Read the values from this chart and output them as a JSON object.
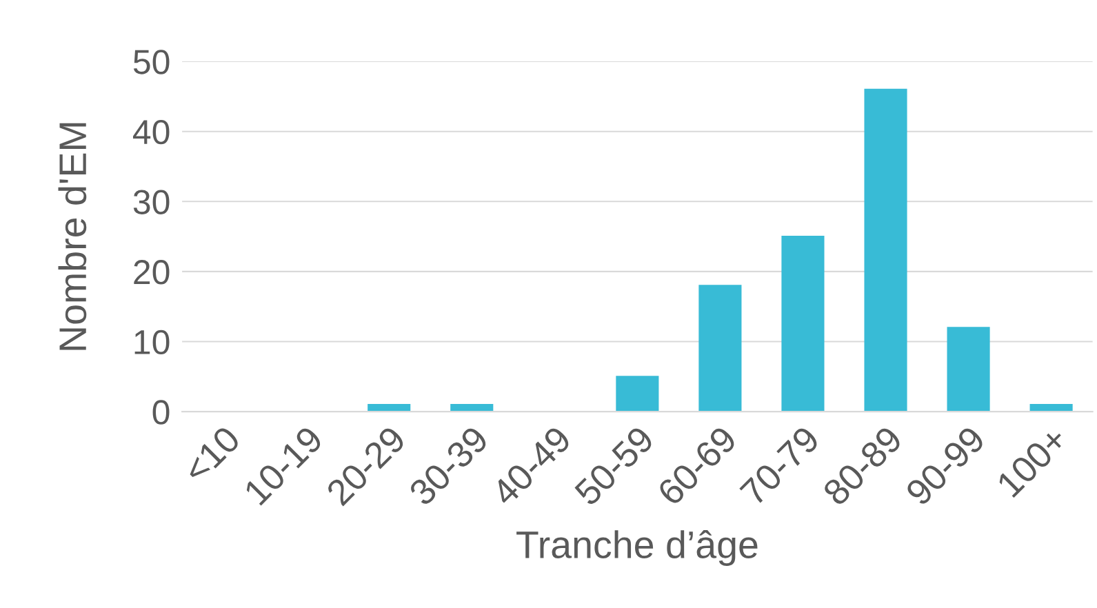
{
  "chart_data": {
    "type": "bar",
    "categories": [
      "<10",
      "10-19",
      "20-29",
      "30-39",
      "40-49",
      "50-59",
      "60-69",
      "70-79",
      "80-89",
      "90-99",
      "100+"
    ],
    "values": [
      0,
      0,
      1,
      1,
      0,
      5,
      18,
      25,
      46,
      12,
      1
    ],
    "color": "#38bbd6",
    "xlabel": "Tranche d’âge",
    "ylabel": "Nombre d'EM",
    "ylim": [
      0,
      50
    ],
    "yticks": [
      0,
      10,
      20,
      30,
      40,
      50
    ],
    "grid": "y"
  }
}
